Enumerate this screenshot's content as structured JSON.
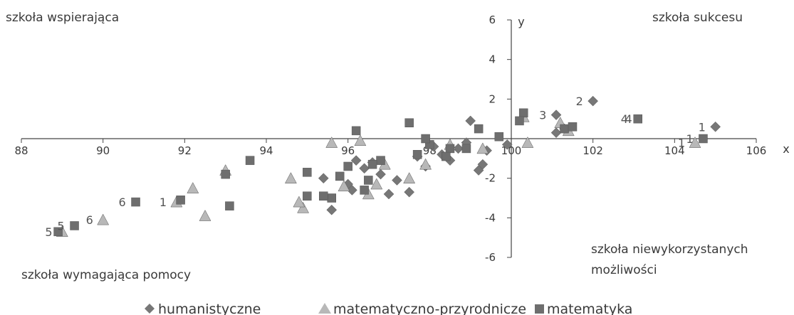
{
  "chart_data": {
    "type": "scatter",
    "xlabel": "x",
    "ylabel": "y",
    "xlim": [
      88,
      106
    ],
    "ylim": [
      -6,
      6
    ],
    "x_ticks": [
      88,
      90,
      92,
      94,
      96,
      98,
      100,
      102,
      104,
      106
    ],
    "y_ticks": [
      -6,
      -4,
      -2,
      2,
      4,
      6
    ],
    "grid": false,
    "legend_position": "bottom",
    "quadrant_labels": {
      "top_left": "szkoła wspierająca",
      "top_right": "szkoła sukcesu",
      "bottom_left": "szkoła wymagająca pomocy",
      "bottom_right_line1": "szkoła niewykorzystanych",
      "bottom_right_line2": "możliwości"
    },
    "series": [
      {
        "name": "humanistyczne",
        "marker": "diamond",
        "color": "#777777",
        "points": [
          [
            105.0,
            0.6
          ],
          [
            102.0,
            1.9
          ],
          [
            101.1,
            1.2
          ],
          [
            101.1,
            0.3
          ],
          [
            101.3,
            0.5
          ],
          [
            99.9,
            -0.3
          ],
          [
            99.4,
            -0.6
          ],
          [
            99.3,
            -1.3
          ],
          [
            99.2,
            -1.6
          ],
          [
            99.0,
            0.9
          ],
          [
            98.9,
            -0.2
          ],
          [
            98.7,
            -0.5
          ],
          [
            98.5,
            -1.1
          ],
          [
            98.3,
            -0.8
          ],
          [
            98.1,
            -0.4
          ],
          [
            97.9,
            -1.4
          ],
          [
            97.7,
            -0.9
          ],
          [
            97.5,
            -2.7
          ],
          [
            97.2,
            -2.1
          ],
          [
            97.0,
            -2.8
          ],
          [
            96.8,
            -1.8
          ],
          [
            96.6,
            -1.2
          ],
          [
            96.4,
            -1.5
          ],
          [
            96.2,
            -1.1
          ],
          [
            96.0,
            -2.3
          ],
          [
            96.1,
            -2.6
          ],
          [
            95.6,
            -3.6
          ],
          [
            95.4,
            -2.0
          ]
        ],
        "labels": [
          {
            "x": 102.0,
            "y": 1.9,
            "text": "2"
          },
          {
            "x": 101.1,
            "y": 1.2,
            "text": "3"
          },
          {
            "x": 105.0,
            "y": 0.6,
            "text": "1"
          }
        ]
      },
      {
        "name": "matematyczno-przyrodnicze",
        "marker": "triangle",
        "color": "#b8b8b8",
        "points": [
          [
            100.3,
            1.1
          ],
          [
            101.2,
            0.8
          ],
          [
            101.4,
            0.4
          ],
          [
            100.4,
            -0.2
          ],
          [
            104.5,
            -0.2
          ],
          [
            99.3,
            -0.5
          ],
          [
            98.5,
            -0.3
          ],
          [
            97.9,
            -1.3
          ],
          [
            97.5,
            -2.0
          ],
          [
            96.9,
            -1.3
          ],
          [
            96.7,
            -2.3
          ],
          [
            96.5,
            -2.8
          ],
          [
            96.3,
            -0.1
          ],
          [
            95.9,
            -2.4
          ],
          [
            95.6,
            -0.2
          ],
          [
            94.9,
            -3.5
          ],
          [
            94.8,
            -3.2
          ],
          [
            94.6,
            -2.0
          ],
          [
            93.0,
            -1.6
          ],
          [
            92.5,
            -3.9
          ],
          [
            92.2,
            -2.5
          ],
          [
            91.8,
            -3.2
          ],
          [
            90.0,
            -4.1
          ],
          [
            89.0,
            -4.7
          ]
        ],
        "labels": [
          {
            "x": 103.2,
            "y": 1.0,
            "text": "4"
          },
          {
            "x": 104.5,
            "y": -0.2,
            "text": "1"
          },
          {
            "x": 90.0,
            "y": -4.1,
            "text": "6"
          },
          {
            "x": 91.8,
            "y": -3.2,
            "text": "1"
          },
          {
            "x": 89.0,
            "y": -4.7,
            "text": "5"
          }
        ]
      },
      {
        "name": "matematyka",
        "marker": "square",
        "color": "#6e6e6e",
        "points": [
          [
            103.1,
            1.0
          ],
          [
            104.7,
            0.0
          ],
          [
            101.3,
            0.5
          ],
          [
            101.5,
            0.6
          ],
          [
            100.3,
            1.3
          ],
          [
            100.2,
            0.9
          ],
          [
            99.7,
            0.1
          ],
          [
            99.2,
            0.5
          ],
          [
            98.9,
            -0.5
          ],
          [
            98.5,
            -0.5
          ],
          [
            98.4,
            -0.9
          ],
          [
            98.0,
            -0.3
          ],
          [
            97.7,
            -0.8
          ],
          [
            97.5,
            0.8
          ],
          [
            96.8,
            -1.1
          ],
          [
            96.6,
            -1.3
          ],
          [
            96.5,
            -2.1
          ],
          [
            96.4,
            -2.6
          ],
          [
            96.2,
            0.4
          ],
          [
            96.0,
            -1.4
          ],
          [
            95.8,
            -1.9
          ],
          [
            95.6,
            -3.0
          ],
          [
            95.4,
            -2.9
          ],
          [
            95.0,
            -2.9
          ],
          [
            95.0,
            -1.7
          ],
          [
            93.6,
            -1.1
          ],
          [
            93.1,
            -3.4
          ],
          [
            93.0,
            -1.8
          ],
          [
            91.9,
            -3.1
          ],
          [
            90.8,
            -3.2
          ],
          [
            89.3,
            -4.4
          ],
          [
            88.9,
            -4.7
          ],
          [
            97.9,
            0.0
          ]
        ],
        "labels": [
          {
            "x": 103.1,
            "y": 1.0,
            "text": "4"
          },
          {
            "x": 104.7,
            "y": 0.0,
            "text": "1"
          },
          {
            "x": 90.8,
            "y": -3.2,
            "text": "6"
          },
          {
            "x": 89.3,
            "y": -4.4,
            "text": "5"
          }
        ]
      }
    ]
  }
}
